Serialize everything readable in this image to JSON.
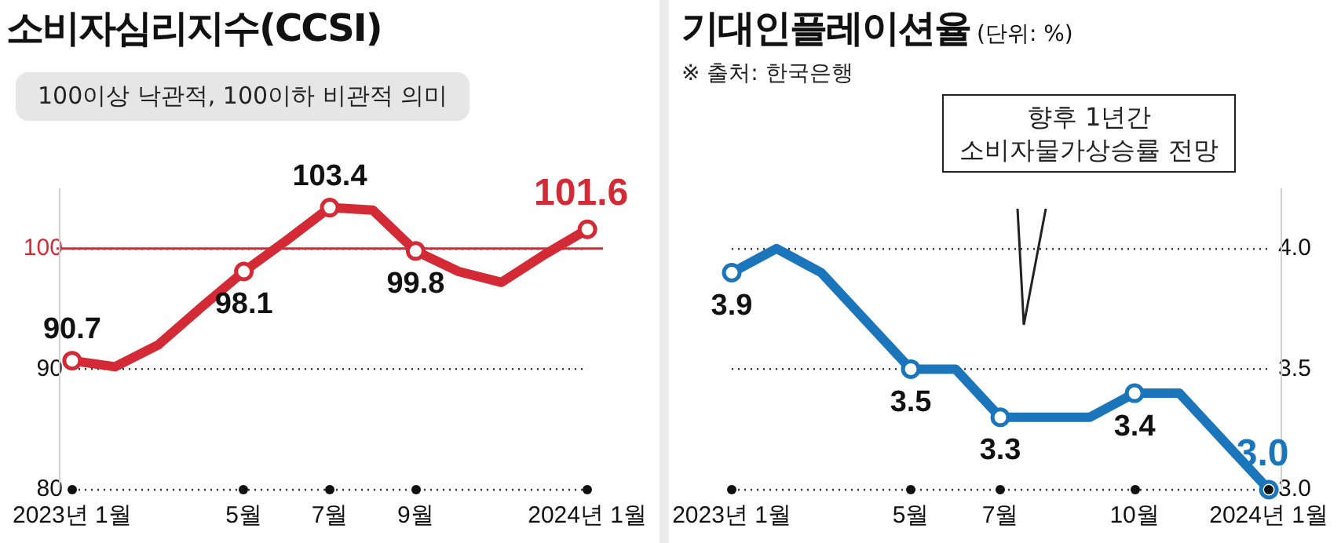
{
  "chart_data": [
    {
      "type": "line",
      "title": "소비자심리지수(CCSI)",
      "annotations": [
        "100이상 낙관적, 100이하 비관적 의미"
      ],
      "categories": [
        "2023년 1월",
        null,
        null,
        null,
        "5월",
        null,
        "7월",
        null,
        "9월",
        null,
        null,
        null,
        "2024년 1월"
      ],
      "series": [
        {
          "color": "#d42a35",
          "values": [
            90.7,
            90.2,
            92.0,
            95.1,
            98.1,
            100.7,
            103.4,
            103.2,
            99.8,
            98.1,
            97.2,
            99.5,
            101.6
          ],
          "value_labels": [
            "90.7",
            null,
            null,
            null,
            "98.1",
            null,
            "103.4",
            null,
            "99.8",
            null,
            null,
            null,
            "101.6"
          ]
        }
      ],
      "ylim": [
        80,
        105
      ],
      "yticks": [
        80,
        90,
        100
      ],
      "grid": "y",
      "legend": false,
      "ref_lines": [
        {
          "axis": "y",
          "value": 100,
          "color": "#d42a35"
        }
      ]
    },
    {
      "type": "line",
      "title": "기대인플레이션율",
      "subtitle": "(단위: %)",
      "annotations": [
        "※ 출처: 한국은행",
        "향후 1년간\n소비자물가상승률 전망"
      ],
      "categories": [
        "2023년 1월",
        null,
        null,
        null,
        "5월",
        null,
        "7월",
        null,
        null,
        "10월",
        null,
        null,
        "2024년 1월"
      ],
      "series": [
        {
          "color": "#1b75bb",
          "values": [
            3.9,
            4.0,
            3.9,
            3.7,
            3.5,
            3.5,
            3.3,
            3.3,
            3.3,
            3.4,
            3.4,
            3.2,
            3.0
          ],
          "value_labels": [
            "3.9",
            null,
            null,
            null,
            "3.5",
            null,
            "3.3",
            null,
            null,
            "3.4",
            null,
            null,
            "3.0"
          ]
        }
      ],
      "ylim": [
        3.0,
        4.25
      ],
      "yticks": [
        {
          "value": 3.0,
          "label": "3.0"
        },
        {
          "value": 3.5,
          "label": "3.5"
        },
        {
          "value": 4.0,
          "label": "4.0"
        }
      ],
      "grid": "y",
      "legend": false
    }
  ]
}
